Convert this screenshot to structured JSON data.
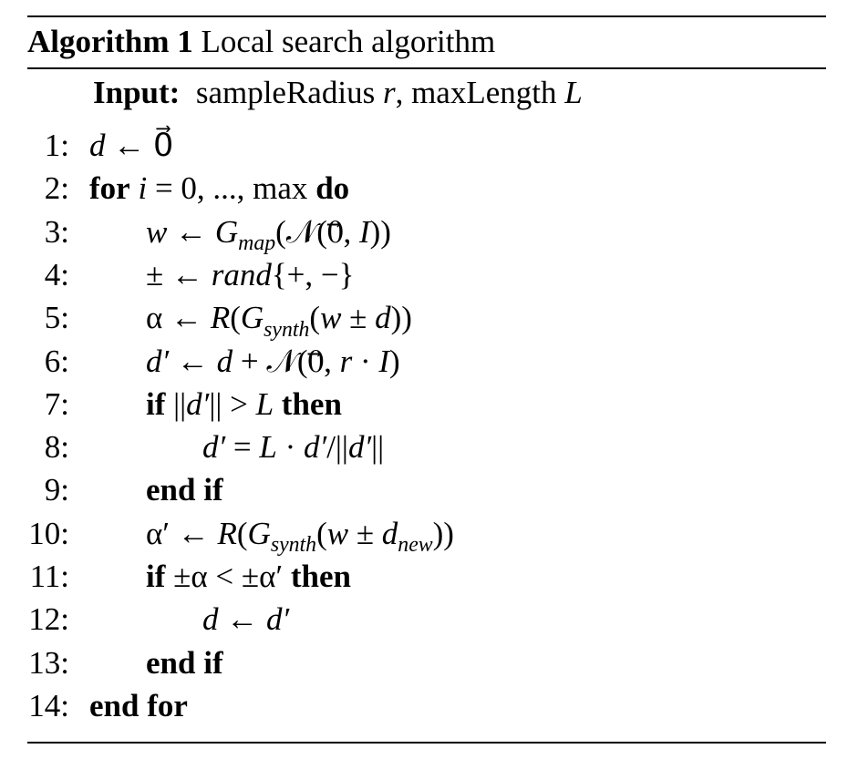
{
  "title": [
    {
      "text": "Algorithm 1",
      "style": "b"
    },
    {
      "text": " Local search algorithm",
      "style": "r"
    }
  ],
  "input": [
    {
      "text": "Input:",
      "style": "b"
    },
    {
      "text": "  sampleRadius ",
      "style": "r"
    },
    {
      "text": "r",
      "style": "i"
    },
    {
      "text": ", maxLength ",
      "style": "r"
    },
    {
      "text": "L",
      "style": "i"
    }
  ],
  "lines": [
    {
      "number": "1:",
      "content": [
        {
          "text": "d",
          "style": "i"
        },
        {
          "text": " ← 0⃗",
          "style": "r"
        }
      ]
    },
    {
      "number": "2:",
      "content": [
        {
          "text": "for",
          "style": "b"
        },
        {
          "text": " ",
          "style": "r"
        },
        {
          "text": "i",
          "style": "i"
        },
        {
          "text": " = 0, ..., max ",
          "style": "r"
        },
        {
          "text": "do",
          "style": "b"
        }
      ]
    },
    {
      "number": "3:",
      "content": [
        {
          "text": "w",
          "style": "i"
        },
        {
          "text": " ← ",
          "style": "r"
        },
        {
          "text": "G",
          "style": "i"
        },
        {
          "text": "map",
          "style": "sub"
        },
        {
          "text": "(𝒩(0⃗, ",
          "style": "r"
        },
        {
          "text": "I",
          "style": "i"
        },
        {
          "text": "))",
          "style": "r"
        }
      ]
    },
    {
      "number": "4:",
      "content": [
        {
          "text": "± ← ",
          "style": "r"
        },
        {
          "text": "rand",
          "style": "i"
        },
        {
          "text": "{+, −}",
          "style": "r"
        }
      ]
    },
    {
      "number": "5:",
      "content": [
        {
          "text": "α ← ",
          "style": "r"
        },
        {
          "text": "R",
          "style": "i"
        },
        {
          "text": "(",
          "style": "r"
        },
        {
          "text": "G",
          "style": "i"
        },
        {
          "text": "synth",
          "style": "sub"
        },
        {
          "text": "(",
          "style": "r"
        },
        {
          "text": "w",
          "style": "i"
        },
        {
          "text": " ± ",
          "style": "r"
        },
        {
          "text": "d",
          "style": "i"
        },
        {
          "text": "))",
          "style": "r"
        }
      ]
    },
    {
      "number": "6:",
      "content": [
        {
          "text": "d′",
          "style": "i"
        },
        {
          "text": " ← ",
          "style": "r"
        },
        {
          "text": "d",
          "style": "i"
        },
        {
          "text": " + 𝒩(0⃗, ",
          "style": "r"
        },
        {
          "text": "r",
          "style": "i"
        },
        {
          "text": " · ",
          "style": "r"
        },
        {
          "text": "I",
          "style": "i"
        },
        {
          "text": ")",
          "style": "r"
        }
      ]
    },
    {
      "number": "7:",
      "content": [
        {
          "text": "if",
          "style": "b"
        },
        {
          "text": " ||",
          "style": "r"
        },
        {
          "text": "d′",
          "style": "i"
        },
        {
          "text": "|| > ",
          "style": "r"
        },
        {
          "text": "L",
          "style": "i"
        },
        {
          "text": " ",
          "style": "r"
        },
        {
          "text": "then",
          "style": "b"
        }
      ]
    },
    {
      "number": "8:",
      "content": [
        {
          "text": "d′",
          "style": "i"
        },
        {
          "text": " = ",
          "style": "r"
        },
        {
          "text": "L",
          "style": "i"
        },
        {
          "text": " · ",
          "style": "r"
        },
        {
          "text": "d′",
          "style": "i"
        },
        {
          "text": "/||",
          "style": "r"
        },
        {
          "text": "d′",
          "style": "i"
        },
        {
          "text": "||",
          "style": "r"
        }
      ]
    },
    {
      "number": "9:",
      "content": [
        {
          "text": "end if",
          "style": "b"
        }
      ]
    },
    {
      "number": "10:",
      "content": [
        {
          "text": "α′ ← ",
          "style": "r"
        },
        {
          "text": "R",
          "style": "i"
        },
        {
          "text": "(",
          "style": "r"
        },
        {
          "text": "G",
          "style": "i"
        },
        {
          "text": "synth",
          "style": "sub"
        },
        {
          "text": "(",
          "style": "r"
        },
        {
          "text": "w",
          "style": "i"
        },
        {
          "text": " ± ",
          "style": "r"
        },
        {
          "text": "d",
          "style": "i"
        },
        {
          "text": "new",
          "style": "sub"
        },
        {
          "text": "))",
          "style": "r"
        }
      ]
    },
    {
      "number": "11:",
      "content": [
        {
          "text": "if",
          "style": "b"
        },
        {
          "text": " ±α < ±α′ ",
          "style": "r"
        },
        {
          "text": "then",
          "style": "b"
        }
      ]
    },
    {
      "number": "12:",
      "content": [
        {
          "text": "d",
          "style": "i"
        },
        {
          "text": " ← ",
          "style": "r"
        },
        {
          "text": "d′",
          "style": "i"
        }
      ]
    },
    {
      "number": "13:",
      "content": [
        {
          "text": "end if",
          "style": "b"
        }
      ]
    },
    {
      "number": "14:",
      "content": [
        {
          "text": "end for",
          "style": "b"
        }
      ]
    }
  ]
}
